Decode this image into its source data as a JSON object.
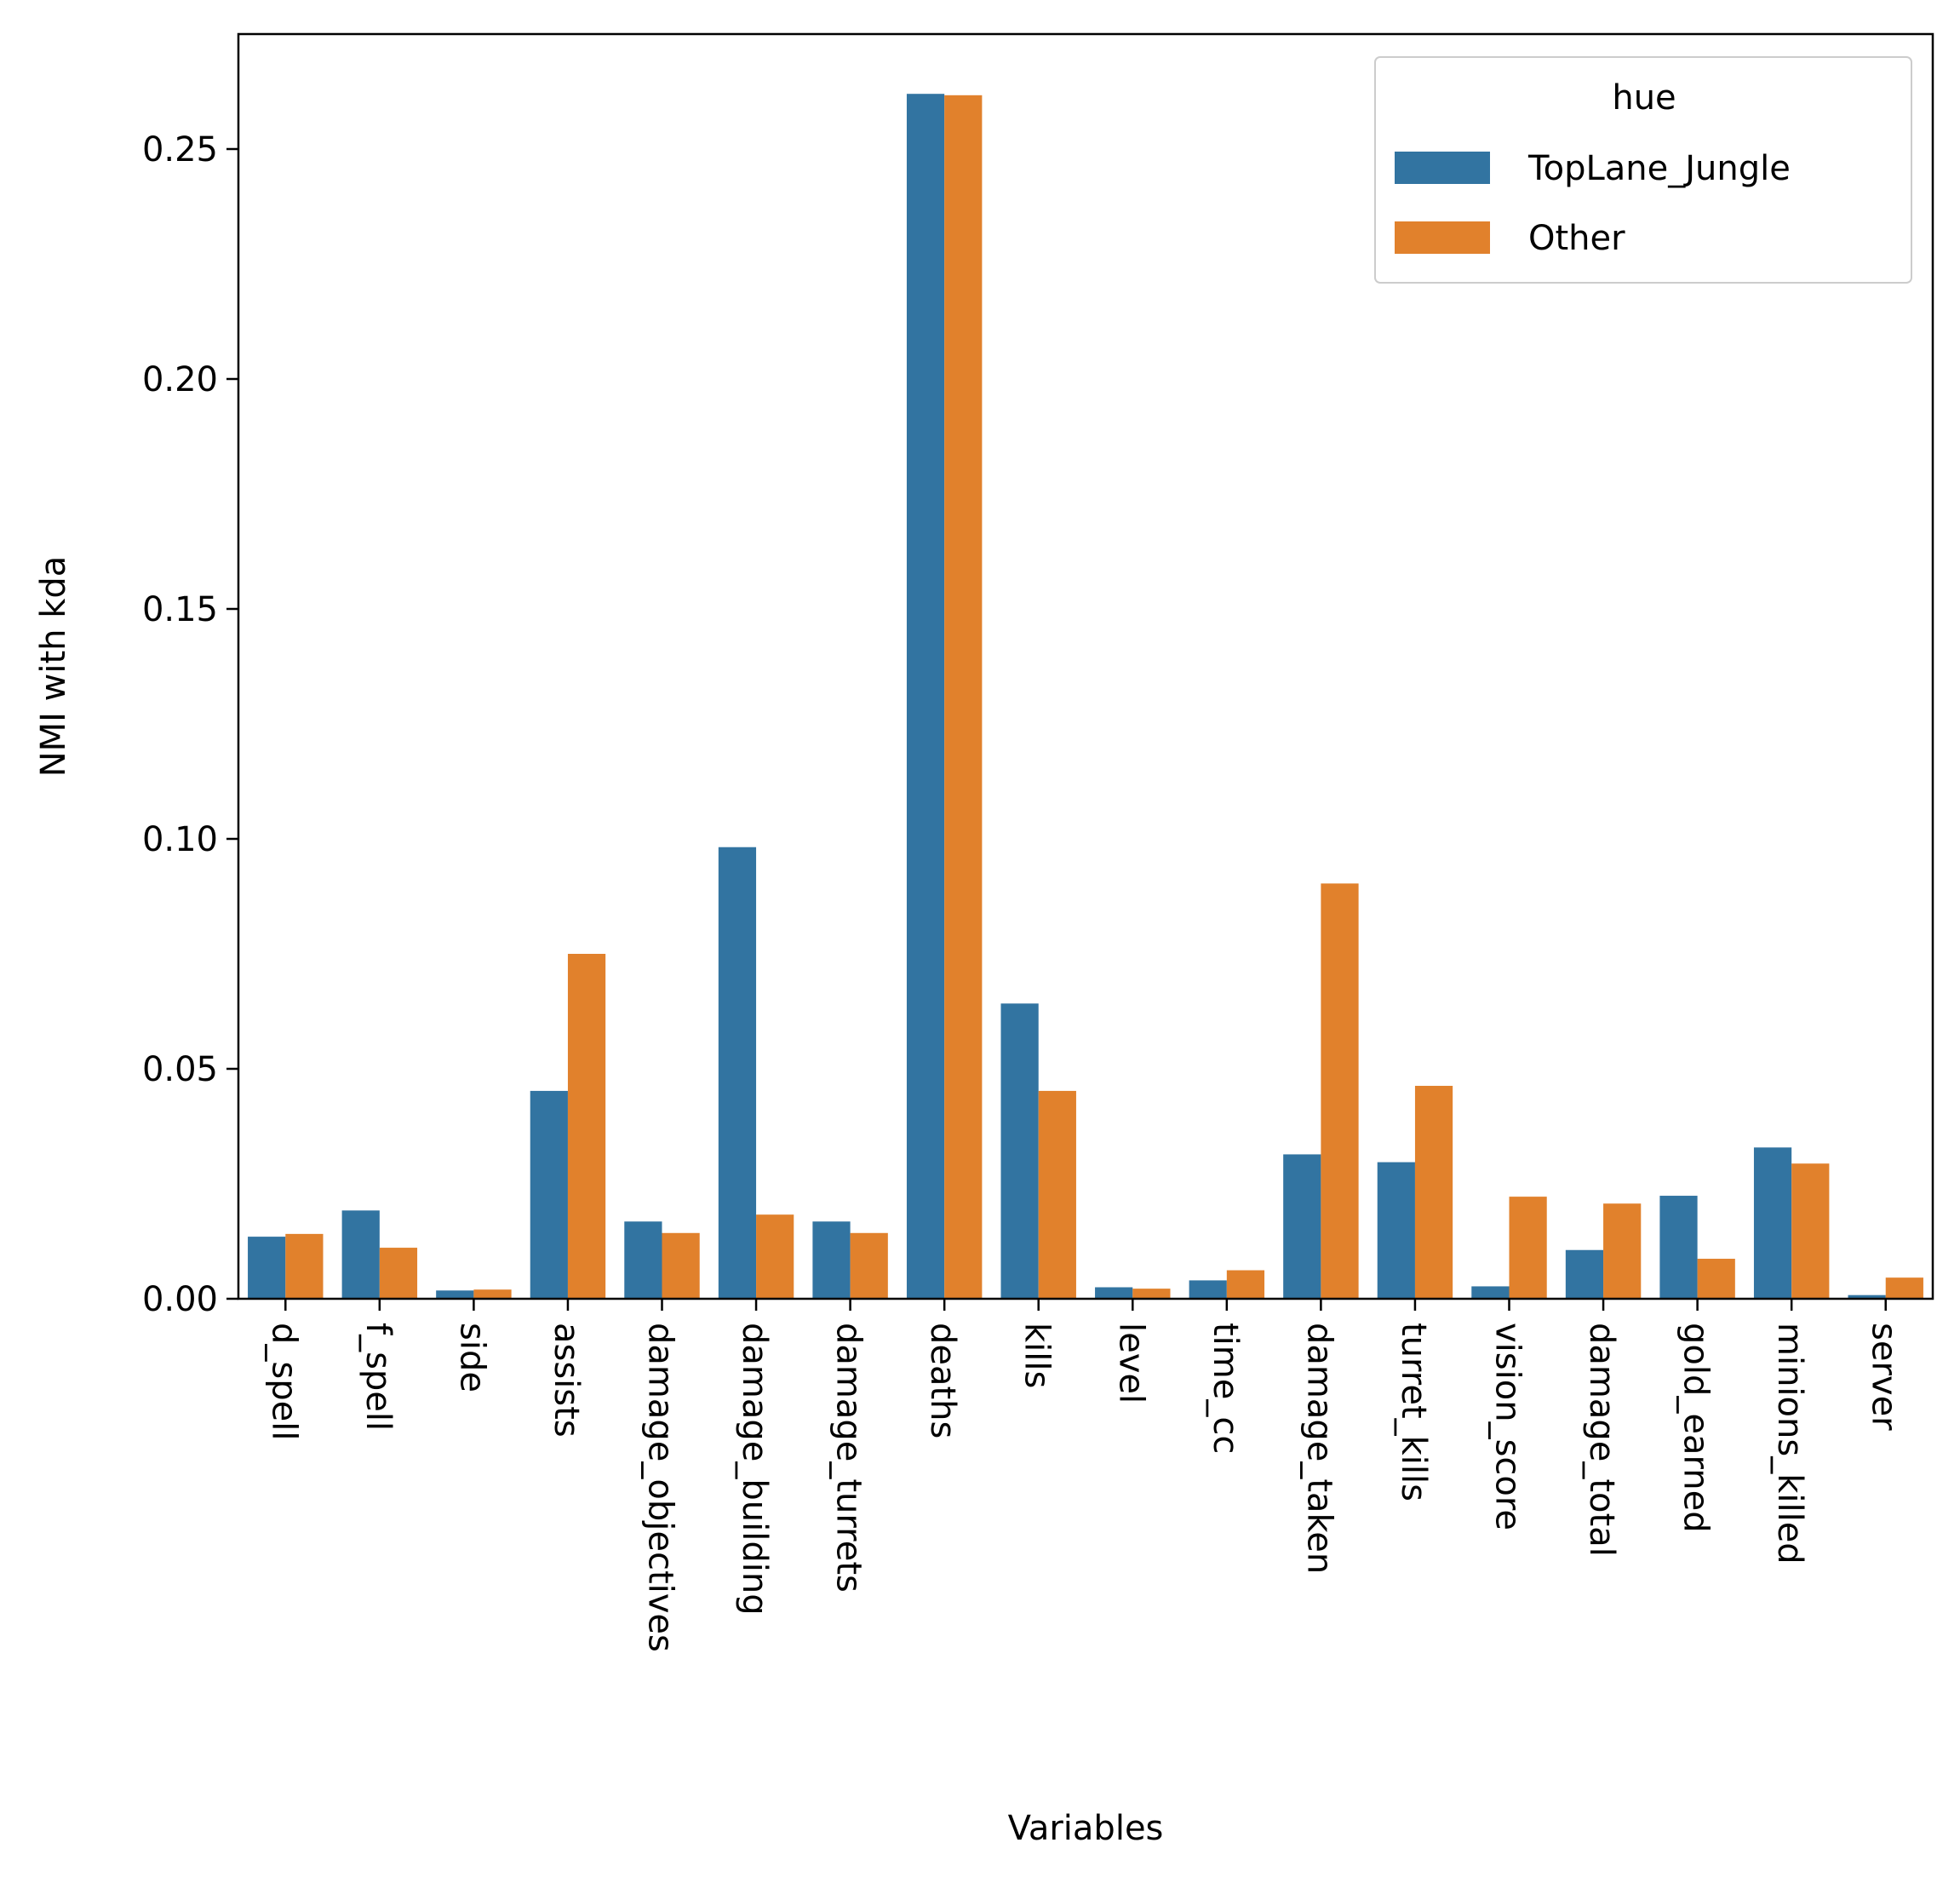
{
  "chart_data": {
    "type": "bar",
    "title": "",
    "xlabel": "Variables",
    "ylabel": "NMI with kda",
    "ylim": [
      0,
      0.275
    ],
    "yticks": [
      "0.00",
      "0.05",
      "0.10",
      "0.15",
      "0.20",
      "0.25"
    ],
    "grid": false,
    "legend": {
      "title": "hue",
      "placement": "top-right"
    },
    "categories": [
      "d_spell",
      "f_spell",
      "side",
      "assists",
      "damage_objectives",
      "damage_building",
      "damage_turrets",
      "deaths",
      "kills",
      "level",
      "time_cc",
      "damage_taken",
      "turret_kills",
      "vision_score",
      "damage_total",
      "gold_earned",
      "minions_killed",
      "server"
    ],
    "series": [
      {
        "name": "TopLane_Jungle",
        "color": "#3274a1",
        "values": [
          0.0135,
          0.0192,
          0.0018,
          0.0452,
          0.0168,
          0.0982,
          0.0168,
          0.262,
          0.0642,
          0.0025,
          0.004,
          0.0314,
          0.0297,
          0.0027,
          0.0106,
          0.0224,
          0.0329,
          0.0008
        ]
      },
      {
        "name": "Other",
        "color": "#e1812c",
        "values": [
          0.0141,
          0.0111,
          0.002,
          0.075,
          0.0143,
          0.0183,
          0.0143,
          0.2617,
          0.0452,
          0.0022,
          0.0062,
          0.0903,
          0.0463,
          0.0222,
          0.0207,
          0.0087,
          0.0294,
          0.0046
        ]
      }
    ]
  }
}
